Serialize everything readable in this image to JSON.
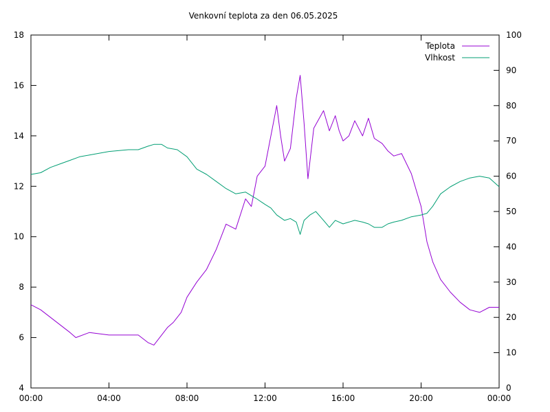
{
  "chart_data": {
    "type": "line",
    "title": "Venkovní teplota za den 06.05.2025",
    "xlabel": "",
    "ylabel": "",
    "y2label": "",
    "x_ticks": [
      "00:00",
      "04:00",
      "08:00",
      "12:00",
      "16:00",
      "20:00",
      "00:00"
    ],
    "xlim": [
      0,
      24
    ],
    "ylim": [
      4,
      18
    ],
    "y_ticks": [
      4,
      6,
      8,
      10,
      12,
      14,
      16,
      18
    ],
    "y2lim": [
      0,
      100
    ],
    "y2_ticks": [
      0,
      10,
      20,
      30,
      40,
      50,
      60,
      70,
      80,
      90,
      100
    ],
    "grid": false,
    "legend_position": "top-right",
    "series": [
      {
        "name": "Teplota",
        "axis": "left",
        "color": "#9400d3",
        "x": [
          0,
          0.5,
          1,
          1.5,
          2,
          2.3,
          3,
          4,
          5,
          5.5,
          6,
          6.3,
          6.6,
          7,
          7.3,
          7.7,
          8,
          8.5,
          9,
          9.5,
          10,
          10.5,
          11,
          11.3,
          11.6,
          12,
          12.3,
          12.6,
          12.8,
          13,
          13.3,
          13.6,
          13.8,
          14,
          14.2,
          14.5,
          15,
          15.3,
          15.6,
          15.8,
          16,
          16.3,
          16.6,
          17,
          17.3,
          17.6,
          18,
          18.3,
          18.6,
          19,
          19.5,
          20,
          20.3,
          20.6,
          21,
          21.5,
          22,
          22.5,
          23,
          23.5,
          24
        ],
        "y": [
          7.3,
          7.1,
          6.8,
          6.5,
          6.2,
          6.0,
          6.2,
          6.1,
          6.1,
          6.1,
          5.8,
          5.7,
          6.0,
          6.4,
          6.6,
          7.0,
          7.6,
          8.2,
          8.7,
          9.5,
          10.5,
          10.3,
          11.5,
          11.2,
          12.4,
          12.8,
          14.0,
          15.2,
          14.0,
          13.0,
          13.5,
          15.5,
          16.4,
          14.5,
          12.3,
          14.3,
          15.0,
          14.2,
          14.8,
          14.2,
          13.8,
          14.0,
          14.6,
          14.0,
          14.7,
          13.9,
          13.7,
          13.4,
          13.2,
          13.3,
          12.5,
          11.2,
          9.8,
          9.0,
          8.3,
          7.8,
          7.4,
          7.1,
          7.0,
          7.2,
          7.2
        ]
      },
      {
        "name": "Vlhkost",
        "axis": "right",
        "color": "#009e73",
        "x": [
          0,
          0.5,
          1,
          1.5,
          2,
          2.5,
          3,
          4,
          5,
          5.5,
          6,
          6.3,
          6.7,
          7,
          7.5,
          8,
          8.5,
          9,
          9.5,
          10,
          10.5,
          11,
          11.3,
          11.6,
          12,
          12.3,
          12.6,
          13,
          13.3,
          13.6,
          13.8,
          14,
          14.3,
          14.6,
          15,
          15.3,
          15.6,
          16,
          16.3,
          16.6,
          17,
          17.3,
          17.6,
          18,
          18.3,
          18.6,
          19,
          19.5,
          20,
          20.3,
          20.6,
          21,
          21.5,
          22,
          22.5,
          23,
          23.5,
          24
        ],
        "y": [
          60.5,
          61,
          62.5,
          63.5,
          64.5,
          65.5,
          66,
          67,
          67.5,
          67.5,
          68.5,
          69,
          69,
          68,
          67.5,
          65.5,
          62,
          60.5,
          58.5,
          56.5,
          55,
          55.5,
          54.5,
          53.5,
          52,
          51,
          49,
          47.5,
          48,
          47,
          43.5,
          47.5,
          49,
          50,
          47.5,
          45.5,
          47.5,
          46.5,
          47,
          47.5,
          47,
          46.5,
          45.5,
          45.5,
          46.5,
          47,
          47.5,
          48.5,
          49,
          49.5,
          51.5,
          55,
          57,
          58.5,
          59.5,
          60,
          59.5,
          57
        ]
      }
    ]
  }
}
